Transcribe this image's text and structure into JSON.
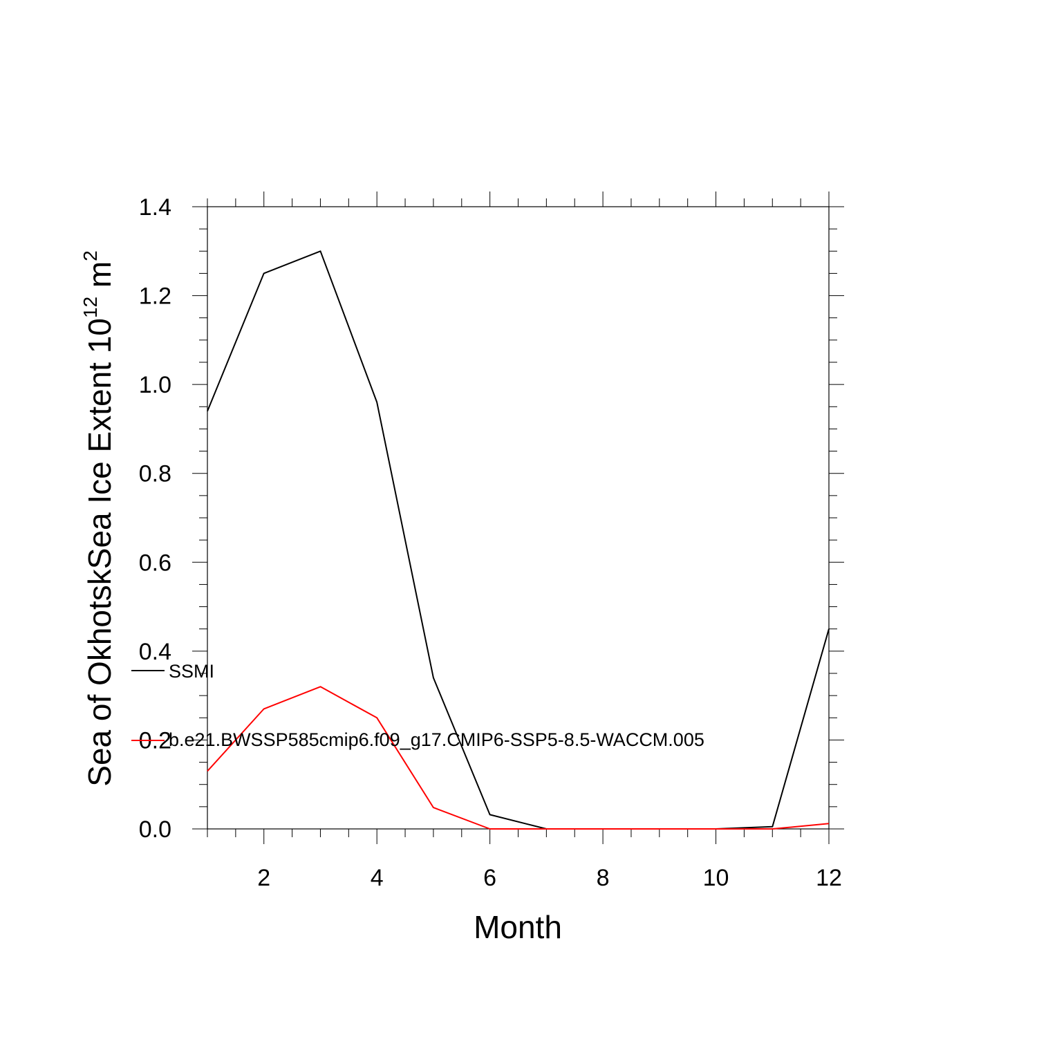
{
  "chart_data": {
    "type": "line",
    "title": "",
    "xlabel": "Month",
    "ylabel_main": "Sea of OkhotskSea Ice Extent 10",
    "ylabel_sup": "12",
    "ylabel_unit": " m",
    "ylabel_unit_sup": "2",
    "xlim": [
      1,
      12
    ],
    "ylim": [
      0,
      1.4
    ],
    "x_ticks": [
      2,
      4,
      6,
      8,
      10,
      12
    ],
    "x_tick_labels": [
      "2",
      "4",
      "6",
      "8",
      "10",
      "12"
    ],
    "y_ticks": [
      0,
      0.2,
      0.4,
      0.6,
      0.8,
      1.0,
      1.2,
      1.4
    ],
    "y_tick_labels": [
      "0.0",
      "0.2",
      "0.4",
      "0.6",
      "0.8",
      "1.0",
      "1.2",
      "1.4"
    ],
    "grid": false,
    "legend_position": "left",
    "x": [
      1,
      2,
      3,
      4,
      5,
      6,
      7,
      8,
      9,
      10,
      11,
      12
    ],
    "series": [
      {
        "name": "SSMI",
        "color": "#000000",
        "values": [
          0.94,
          1.25,
          1.3,
          0.96,
          0.34,
          0.032,
          0.0,
          0.0,
          0.0,
          0.0,
          0.005,
          0.45
        ]
      },
      {
        "name": "b.e21.BWSSP585cmip6.f09_g17.CMIP6-SSP5-8.5-WACCM.005",
        "color": "#ff0000",
        "values": [
          0.13,
          0.27,
          0.32,
          0.25,
          0.048,
          0.0,
          0.0,
          0.0,
          0.0,
          0.0,
          0.0,
          0.012
        ]
      }
    ]
  }
}
